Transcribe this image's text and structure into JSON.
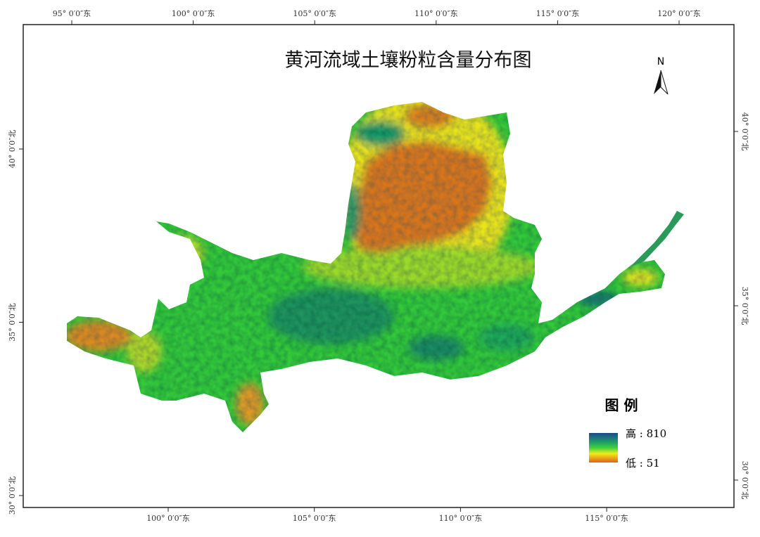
{
  "title": "黄河流域土壤粉粒含量分布图",
  "north": "N",
  "legend": {
    "title": "图 例",
    "high": "高 : 810",
    "low": "低 : 51"
  },
  "graticule": {
    "top": [
      "95° 0′0″东",
      "100° 0′0″东",
      "105° 0′0″东",
      "110° 0′0″东",
      "115° 0′0″东",
      "120° 0′0″东"
    ],
    "bottom": [
      "100° 0′0″东",
      "105° 0′0″东",
      "110° 0′0″东",
      "115° 0′0″东"
    ],
    "left": [
      "40° 0′0″北",
      "35° 0′0″北",
      "30° 0′0″北"
    ],
    "right": [
      "40° 0′0″北",
      "35° 0′0″北",
      "30° 0′0″北"
    ]
  }
}
